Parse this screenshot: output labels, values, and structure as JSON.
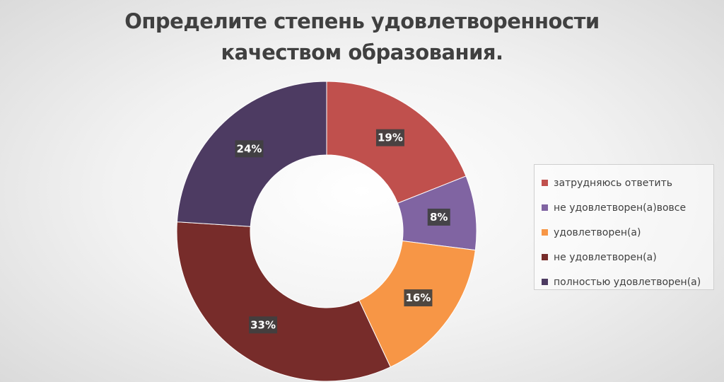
{
  "chart_data": {
    "type": "pie",
    "variant": "doughnut",
    "title_lines": [
      "Определите степень удовлетворенности",
      "качеством образования."
    ],
    "legend_position": "right",
    "slices": [
      {
        "label": "затрудняюсь ответить",
        "value": 19,
        "value_label": "19%",
        "color": "#c0504d"
      },
      {
        "label": "не удовлетворен(а)вовсе",
        "value": 8,
        "value_label": "8%",
        "color": "#8064a2"
      },
      {
        "label": "удовлетворен(а)",
        "value": 16,
        "value_label": "16%",
        "color": "#f79646"
      },
      {
        "label": "не удовлетворен(а)",
        "value": 33,
        "value_label": "33%",
        "color": "#772c2a"
      },
      {
        "label": "полностью удовлетворен(а)",
        "value": 24,
        "value_label": "24%",
        "color": "#4d3b62"
      }
    ]
  }
}
